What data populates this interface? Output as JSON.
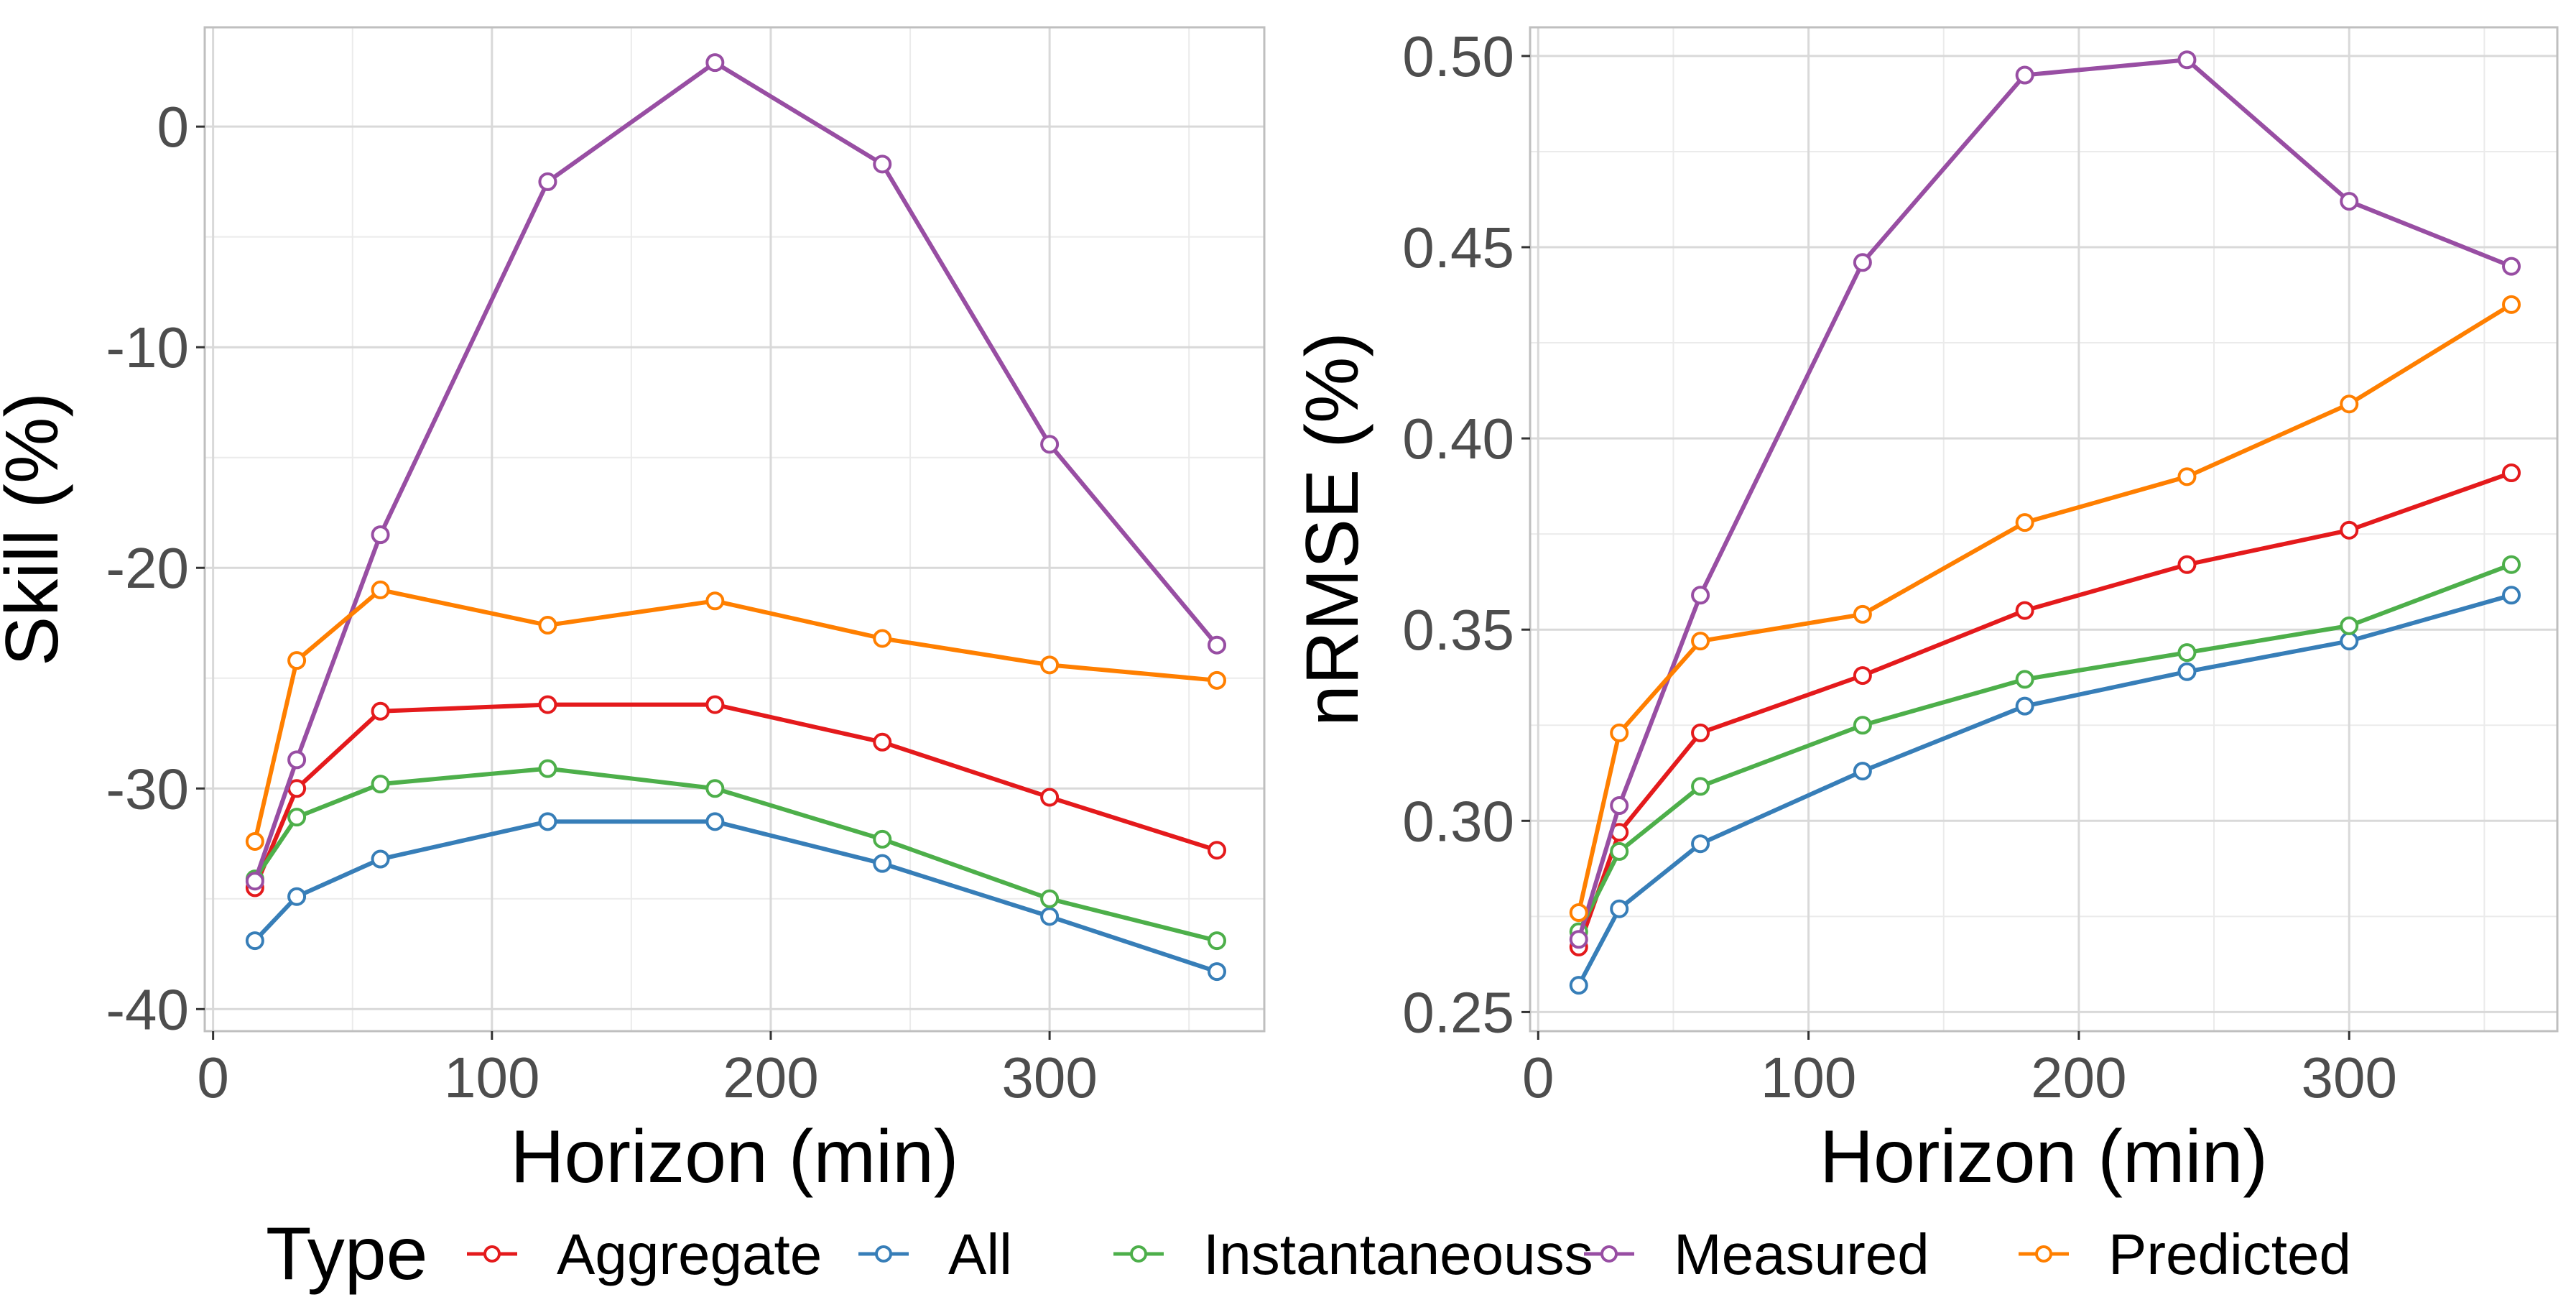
{
  "chart_data": [
    {
      "type": "line",
      "xlabel": "Horizon (min)",
      "ylabel": "Skill (%)",
      "xlim": [
        -3,
        377
      ],
      "ylim": [
        -41,
        4.5
      ],
      "x_ticks": [
        0,
        100,
        200,
        300
      ],
      "y_ticks": [
        -40,
        -30,
        -20,
        -10,
        0
      ],
      "y_tick_labels": [
        "-40",
        "-30",
        "-20",
        "-10",
        "0"
      ],
      "grid": true,
      "x": [
        15,
        30,
        60,
        120,
        180,
        240,
        300,
        360
      ],
      "series": [
        {
          "name": "Aggregate",
          "color": "#e41a1c",
          "values": [
            -34.5,
            -30.0,
            -26.5,
            -26.2,
            -26.2,
            -27.9,
            -30.4,
            -32.8
          ]
        },
        {
          "name": "All",
          "color": "#377eb8",
          "values": [
            -36.9,
            -34.9,
            -33.2,
            -31.5,
            -31.5,
            -33.4,
            -35.8,
            -38.3
          ]
        },
        {
          "name": "Instantaneouss",
          "color": "#4daf4a",
          "values": [
            -34.1,
            -31.3,
            -29.8,
            -29.1,
            -30.0,
            -32.3,
            -35.0,
            -36.9
          ]
        },
        {
          "name": "Measured",
          "color": "#984ea3",
          "values": [
            -34.2,
            -28.7,
            -18.5,
            -2.5,
            2.9,
            -1.7,
            -14.4,
            -23.5
          ]
        },
        {
          "name": "Predicted",
          "color": "#ff7f00",
          "values": [
            -32.4,
            -24.2,
            -21.0,
            -22.6,
            -21.5,
            -23.2,
            -24.4,
            -25.1
          ]
        }
      ]
    },
    {
      "type": "line",
      "xlabel": "Horizon (min)",
      "ylabel": "nRMSE (%)",
      "xlim": [
        -3,
        377
      ],
      "ylim": [
        0.245,
        0.5075
      ],
      "x_ticks": [
        0,
        100,
        200,
        300
      ],
      "y_ticks": [
        0.25,
        0.3,
        0.35,
        0.4,
        0.45,
        0.5
      ],
      "y_tick_labels": [
        "0.25",
        "0.30",
        "0.35",
        "0.40",
        "0.45",
        "0.50"
      ],
      "grid": true,
      "x": [
        15,
        30,
        60,
        120,
        180,
        240,
        300,
        360
      ],
      "series": [
        {
          "name": "Aggregate",
          "color": "#e41a1c",
          "values": [
            0.267,
            0.297,
            0.323,
            0.338,
            0.355,
            0.367,
            0.376,
            0.391
          ]
        },
        {
          "name": "All",
          "color": "#377eb8",
          "values": [
            0.257,
            0.277,
            0.294,
            0.313,
            0.33,
            0.339,
            0.347,
            0.359
          ]
        },
        {
          "name": "Instantaneouss",
          "color": "#4daf4a",
          "values": [
            0.271,
            0.292,
            0.309,
            0.325,
            0.337,
            0.344,
            0.351,
            0.367
          ]
        },
        {
          "name": "Measured",
          "color": "#984ea3",
          "values": [
            0.269,
            0.304,
            0.359,
            0.446,
            0.495,
            0.499,
            0.462,
            0.445
          ]
        },
        {
          "name": "Predicted",
          "color": "#ff7f00",
          "values": [
            0.276,
            0.323,
            0.347,
            0.354,
            0.378,
            0.39,
            0.409,
            0.435
          ]
        }
      ]
    }
  ],
  "legend": {
    "title": "Type",
    "position": "bottom",
    "items": [
      {
        "label": "Aggregate",
        "color": "#e41a1c"
      },
      {
        "label": "All",
        "color": "#377eb8"
      },
      {
        "label": "Instantaneouss",
        "color": "#4daf4a"
      },
      {
        "label": "Measured",
        "color": "#984ea3"
      },
      {
        "label": "Predicted",
        "color": "#ff7f00"
      }
    ]
  }
}
